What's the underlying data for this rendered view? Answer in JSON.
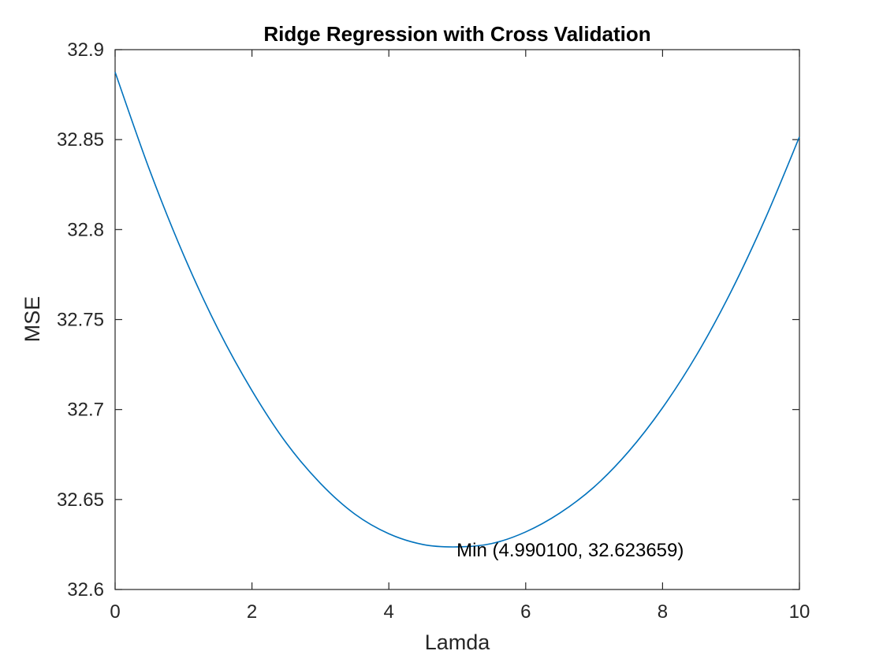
{
  "chart_data": {
    "type": "line",
    "title": "Ridge Regression with Cross Validation",
    "xlabel": "Lamda",
    "ylabel": "MSE",
    "xlim": [
      0,
      10
    ],
    "ylim": [
      32.6,
      32.9
    ],
    "xticks": [
      0,
      2,
      4,
      6,
      8,
      10
    ],
    "xtick_labels": [
      "0",
      "2",
      "4",
      "6",
      "8",
      "10"
    ],
    "yticks": [
      32.6,
      32.65,
      32.7,
      32.75,
      32.8,
      32.85,
      32.9
    ],
    "ytick_labels": [
      "32.6",
      "32.65",
      "32.7",
      "32.75",
      "32.8",
      "32.85",
      "32.9"
    ],
    "grid": false,
    "series": [
      {
        "color": "#0072BD",
        "x": [
          0,
          0.5,
          1,
          1.5,
          2,
          2.5,
          3,
          3.5,
          4,
          4.5,
          4.9901,
          5.5,
          6,
          6.5,
          7,
          7.5,
          8,
          8.5,
          9,
          9.5,
          10
        ],
        "y": [
          32.8875,
          32.8335,
          32.786,
          32.745,
          32.7105,
          32.6815,
          32.659,
          32.642,
          32.631,
          32.625,
          32.623659,
          32.6255,
          32.632,
          32.6425,
          32.657,
          32.6765,
          32.701,
          32.7305,
          32.7655,
          32.806,
          32.8515
        ]
      }
    ],
    "annotations": [
      {
        "text": "Min (4.990100, 32.623659)",
        "x": 4.9901,
        "y": 32.623659
      }
    ]
  }
}
